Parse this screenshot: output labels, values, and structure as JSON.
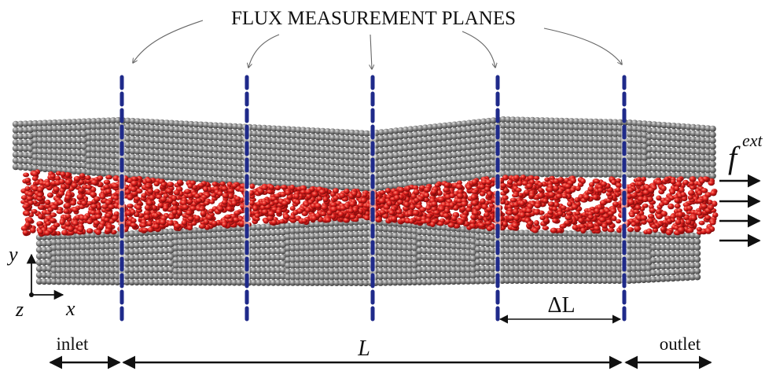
{
  "title": "FLUX MEASUREMENT PLANES",
  "labels": {
    "force": "f",
    "force_sup": "ext",
    "axis_y": "y",
    "axis_x": "x",
    "axis_z": "z",
    "delta_l": "ΔL",
    "inlet": "inlet",
    "length": "L",
    "outlet": "outlet"
  },
  "colors": {
    "wall": "#7a7a7a",
    "wall_highlight": "#d8d8d8",
    "wall_shadow": "#3a3a3a",
    "fluid": "#e0201e",
    "plane": "#1f2a8a",
    "text": "#111111"
  },
  "measurement_planes": 5
}
